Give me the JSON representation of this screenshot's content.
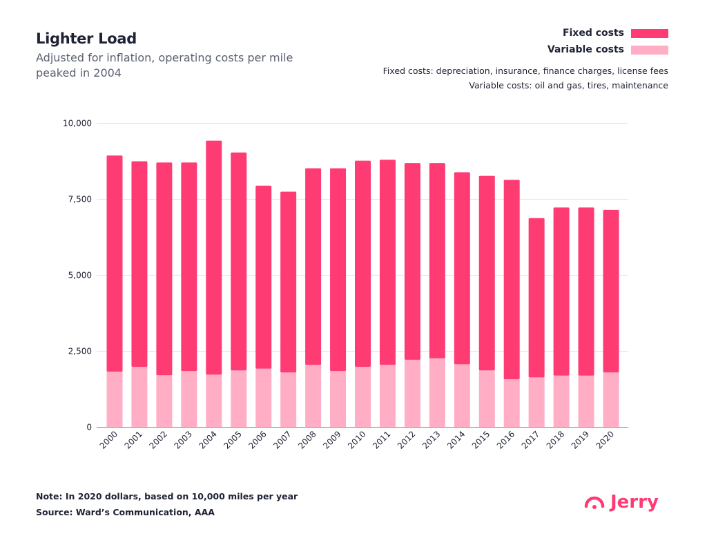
{
  "header": {
    "title": "Lighter Load",
    "subtitle": "Adjusted for inflation, operating costs per mile peaked in 2004"
  },
  "notes": {
    "fixed_def": "Fixed costs: depreciation, insurance, finance charges, license fees",
    "variable_def": "Variable costs: oil and gas, tires, maintenance",
    "note": "Note: In 2020 dollars, based on 10,000 miles per year",
    "source": "Source: Ward’s Communication, AAA"
  },
  "logo": {
    "text": "Jerry",
    "color": "#ff3b74"
  },
  "chart_data": {
    "type": "bar",
    "stacked": true,
    "title": "Lighter Load",
    "subtitle": "Adjusted for inflation, operating costs per mile peaked in 2004",
    "xlabel": "",
    "ylabel": "",
    "ylim": [
      0,
      10000
    ],
    "yticks": [
      0,
      2500,
      5000,
      7500,
      10000
    ],
    "ytick_labels": [
      "0",
      "2,500",
      "5,000",
      "7,500",
      "10,000"
    ],
    "grid": true,
    "legend_placement": "top-right",
    "categories": [
      "2000",
      "2001",
      "2002",
      "2003",
      "2004",
      "2005",
      "2006",
      "2007",
      "2008",
      "2009",
      "2010",
      "2011",
      "2012",
      "2013",
      "2014",
      "2015",
      "2016",
      "2017",
      "2018",
      "2019",
      "2020"
    ],
    "series": [
      {
        "name": "Variable costs",
        "color": "#ffaec6",
        "values": [
          1830,
          1990,
          1710,
          1850,
          1730,
          1870,
          1930,
          1800,
          2050,
          1850,
          1990,
          2050,
          2220,
          2270,
          2070,
          1870,
          1580,
          1640,
          1700,
          1700,
          1800
        ]
      },
      {
        "name": "Fixed costs",
        "color": "#ff3b74",
        "values": [
          7110,
          6760,
          7000,
          6860,
          7700,
          7170,
          6020,
          5950,
          6470,
          6670,
          6780,
          6750,
          6470,
          6420,
          6320,
          6400,
          6560,
          5240,
          5530,
          5530,
          5350
        ]
      }
    ]
  }
}
